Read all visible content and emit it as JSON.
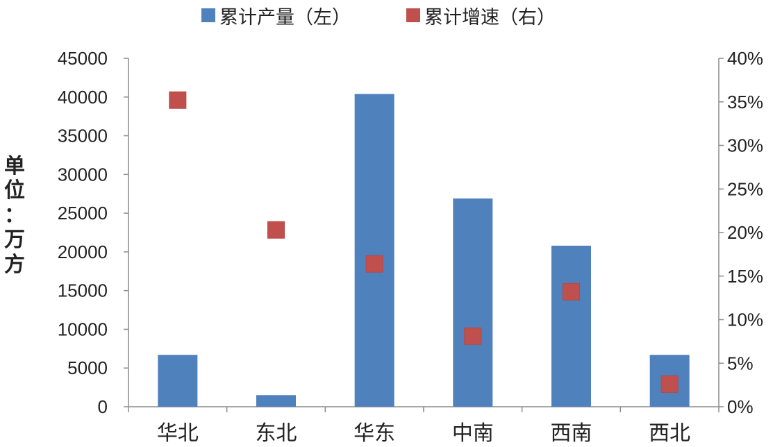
{
  "chart_data": {
    "type": "bar",
    "title": "",
    "categories": [
      "华北",
      "东北",
      "华东",
      "中南",
      "西南",
      "西北"
    ],
    "series": [
      {
        "name": "累计产量（左）",
        "type": "bar",
        "axis": "left",
        "color": "#4F81BD",
        "values": [
          6700,
          1500,
          40400,
          26900,
          20800,
          6700
        ]
      },
      {
        "name": "累计增速（右）",
        "type": "scatter",
        "marker": "square",
        "axis": "right",
        "color": "#C0504D",
        "values": [
          35.2,
          20.3,
          16.4,
          8.1,
          13.2,
          2.6
        ]
      }
    ],
    "ylabel": "单位：万方",
    "ylim": [
      0,
      45000
    ],
    "yticks": [
      "0",
      "5000",
      "10000",
      "15000",
      "20000",
      "25000",
      "30000",
      "35000",
      "40000",
      "45000"
    ],
    "y2lim": [
      0,
      40
    ],
    "y2ticks": [
      "0%",
      "5%",
      "10%",
      "15%",
      "20%",
      "25%",
      "30%",
      "35%",
      "40%"
    ],
    "grid": false,
    "legend_position": "top"
  },
  "unit_chars": [
    "单",
    "位",
    "：",
    "万",
    "方"
  ]
}
